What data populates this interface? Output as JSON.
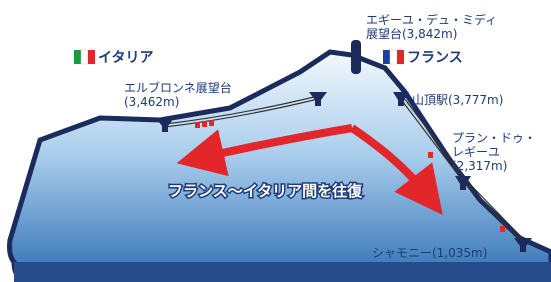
{
  "labels": {
    "italy": "イタリア",
    "france": "フランス",
    "aiguille_line1": "エギーユ・デュ・ミディ",
    "aiguille_line2": "展望台(3,842m)",
    "helbronner_line1": "エルブロンネ展望台",
    "helbronner_line2": "(3,462m)",
    "summit_station": "山頂駅(3,777m)",
    "plan_line1": "プラン・ドゥ・",
    "plan_line2": "レギーユ",
    "plan_line3": "(2,317m)",
    "chamonix": "シャモニー(1,035m)",
    "route": "フランス〜イタリア間を往復"
  }
}
